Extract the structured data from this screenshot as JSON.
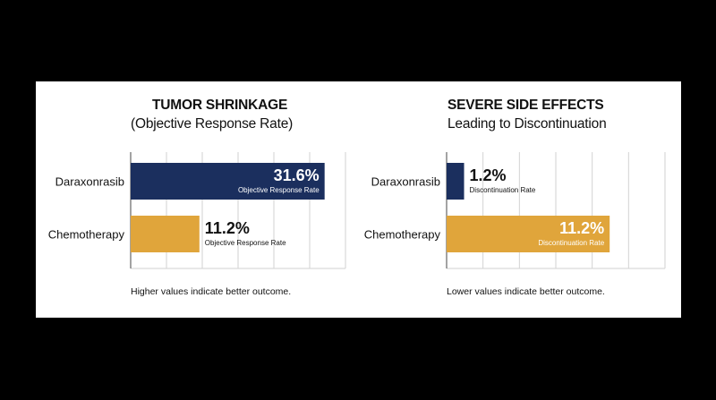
{
  "colors": {
    "background": "#000000",
    "panel": "#ffffff",
    "treatment": "#1b2f5e",
    "control": "#e0a53b",
    "grid": "#d2d2d2",
    "axis": "#666666",
    "text": "#111111",
    "label_on_dark": "#ffffff"
  },
  "chart_data": [
    {
      "type": "bar",
      "orientation": "horizontal",
      "title": "TUMOR SHRINKAGE",
      "subtitle": "(Objective Response Rate)",
      "categories": [
        "Daraxonrasib",
        "Chemotherapy"
      ],
      "values": [
        31.6,
        11.2
      ],
      "value_labels": [
        "31.6%",
        "11.2%"
      ],
      "value_sublabels": [
        "Objective Response Rate",
        "Objective Response Rate"
      ],
      "xlim": [
        0,
        35
      ],
      "grid": true,
      "note": "Higher values indicate better outcome."
    },
    {
      "type": "bar",
      "orientation": "horizontal",
      "title": "SEVERE SIDE EFFECTS",
      "subtitle": "Leading to Discontinuation",
      "categories": [
        "Daraxonrasib",
        "Chemotherapy"
      ],
      "values": [
        1.2,
        11.2
      ],
      "value_labels": [
        "1.2%",
        "11.2%"
      ],
      "value_sublabels": [
        "Discontinuation Rate",
        "Discontinuation Rate"
      ],
      "xlim": [
        0,
        15
      ],
      "grid": true,
      "note": "Lower values indicate better outcome."
    }
  ]
}
